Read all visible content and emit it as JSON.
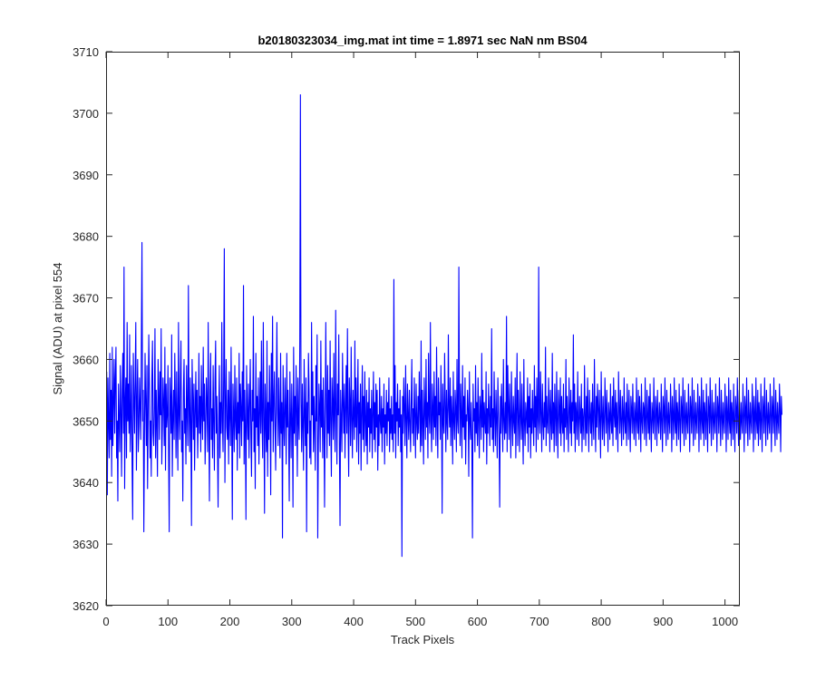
{
  "colors": {
    "line": "#0000ff",
    "axis": "#262626",
    "background": "#ffffff"
  },
  "chart_data": {
    "type": "line",
    "title": "b20180323034_img.mat int time = 1.8971 sec  NaN nm BS04",
    "xlabel": "Track Pixels",
    "ylabel": "Signal (ADU) at pixel 554",
    "xlim": [
      0,
      1024
    ],
    "ylim": [
      3620,
      3710
    ],
    "xticks": [
      0,
      100,
      200,
      300,
      400,
      500,
      600,
      700,
      800,
      900,
      1000
    ],
    "yticks": [
      3620,
      3630,
      3640,
      3650,
      3660,
      3670,
      3680,
      3690,
      3700,
      3710
    ],
    "grid": false,
    "series": [
      {
        "x_start": 1,
        "x_step": 1,
        "y": [
          3658,
          3638,
          3657,
          3650,
          3644,
          3661,
          3647,
          3655,
          3641,
          3662,
          3646,
          3653,
          3660,
          3648,
          3657,
          3662,
          3644,
          3650,
          3637,
          3656,
          3650,
          3645,
          3659,
          3652,
          3641,
          3655,
          3661,
          3648,
          3675,
          3639,
          3653,
          3657,
          3644,
          3666,
          3650,
          3656,
          3648,
          3664,
          3645,
          3651,
          3659,
          3643,
          3634,
          3661,
          3654,
          3648,
          3657,
          3666,
          3642,
          3653,
          3660,
          3645,
          3649,
          3657,
          3652,
          3647,
          3663,
          3679,
          3650,
          3655,
          3632,
          3648,
          3661,
          3653,
          3646,
          3659,
          3639,
          3651,
          3664,
          3656,
          3644,
          3650,
          3641,
          3657,
          3663,
          3648,
          3646,
          3652,
          3665,
          3644,
          3655,
          3650,
          3641,
          3660,
          3654,
          3647,
          3658,
          3651,
          3665,
          3643,
          3649,
          3657,
          3653,
          3646,
          3662,
          3642,
          3656,
          3649,
          3651,
          3659,
          3645,
          3632,
          3657,
          3653,
          3648,
          3664,
          3641,
          3650,
          3655,
          3647,
          3661,
          3653,
          3644,
          3658,
          3650,
          3642,
          3666,
          3651,
          3647,
          3657,
          3663,
          3645,
          3650,
          3637,
          3655,
          3660,
          3648,
          3652,
          3643,
          3659,
          3651,
          3646,
          3672,
          3652,
          3645,
          3657,
          3650,
          3633,
          3660,
          3654,
          3647,
          3656,
          3642,
          3651,
          3658,
          3649,
          3655,
          3644,
          3650,
          3661,
          3648,
          3654,
          3645,
          3659,
          3651,
          3647,
          3662,
          3650,
          3656,
          3643,
          3649,
          3657,
          3653,
          3645,
          3666,
          3650,
          3637,
          3655,
          3661,
          3647,
          3652,
          3644,
          3659,
          3650,
          3642,
          3657,
          3663,
          3648,
          3654,
          3646,
          3636,
          3651,
          3659,
          3644,
          3653,
          3648,
          3666,
          3650,
          3645,
          3657,
          3678,
          3640,
          3652,
          3660,
          3649,
          3647,
          3655,
          3643,
          3658,
          3651,
          3646,
          3662,
          3649,
          3634,
          3656,
          3651,
          3645,
          3659,
          3650,
          3647,
          3657,
          3642,
          3653,
          3648,
          3661,
          3644,
          3656,
          3652,
          3646,
          3658,
          3650,
          3672,
          3643,
          3655,
          3649,
          3634,
          3659,
          3651,
          3647,
          3656,
          3644,
          3653,
          3660,
          3648,
          3641,
          3655,
          3650,
          3667,
          3645,
          3652,
          3639,
          3661,
          3649,
          3654,
          3646,
          3657,
          3643,
          3651,
          3658,
          3648,
          3663,
          3650,
          3644,
          3666,
          3652,
          3635,
          3656,
          3650,
          3645,
          3663,
          3641,
          3653,
          3647,
          3659,
          3652,
          3638,
          3661,
          3650,
          3667,
          3645,
          3653,
          3658,
          3649,
          3642,
          3655,
          3666,
          3651,
          3646,
          3657,
          3650,
          3644,
          3661,
          3648,
          3653,
          3631,
          3659,
          3650,
          3646,
          3657,
          3652,
          3643,
          3661,
          3649,
          3655,
          3647,
          3637,
          3658,
          3651,
          3644,
          3656,
          3650,
          3636,
          3662,
          3648,
          3654,
          3646,
          3659,
          3652,
          3641,
          3657,
          3650,
          3647,
          3663,
          3703,
          3653,
          3645,
          3656,
          3649,
          3642,
          3660,
          3651,
          3646,
          3657,
          3632,
          3653,
          3648,
          3661,
          3655,
          3644,
          3650,
          3643,
          3666,
          3651,
          3658,
          3645,
          3654,
          3649,
          3642,
          3659,
          3650,
          3664,
          3631,
          3646,
          3656,
          3652,
          3645,
          3663,
          3649,
          3655,
          3644,
          3657,
          3650,
          3636,
          3651,
          3666,
          3652,
          3644,
          3659,
          3648,
          3655,
          3646,
          3663,
          3650,
          3641,
          3657,
          3653,
          3647,
          3661,
          3650,
          3645,
          3668,
          3652,
          3643,
          3656,
          3651,
          3664,
          3646,
          3633,
          3655,
          3650,
          3645,
          3661,
          3653,
          3648,
          3656,
          3644,
          3652,
          3659,
          3648,
          3665,
          3650,
          3641,
          3657,
          3653,
          3646,
          3662,
          3650,
          3644,
          3655,
          3651,
          3647,
          3663,
          3649,
          3657,
          3645,
          3652,
          3660,
          3643,
          3653,
          3648,
          3656,
          3642,
          3651,
          3659,
          3647,
          3654,
          3645,
          3658,
          3650,
          3646,
          3655,
          3643,
          3653,
          3649,
          3657,
          3645,
          3652,
          3648,
          3655,
          3644,
          3651,
          3658,
          3647,
          3653,
          3645,
          3656,
          3649,
          3655,
          3642,
          3651,
          3646,
          3657,
          3650,
          3648,
          3654,
          3645,
          3652,
          3649,
          3656,
          3643,
          3651,
          3648,
          3655,
          3646,
          3653,
          3650,
          3657,
          3645,
          3652,
          3648,
          3654,
          3647,
          3651,
          3645,
          3673,
          3648,
          3659,
          3644,
          3653,
          3650,
          3656,
          3646,
          3652,
          3649,
          3655,
          3645,
          3651,
          3628,
          3654,
          3648,
          3657,
          3652,
          3646,
          3659,
          3650,
          3644,
          3656,
          3651,
          3647,
          3655,
          3650,
          3645,
          3653,
          3660,
          3648,
          3652,
          3646,
          3657,
          3651,
          3644,
          3656,
          3650,
          3647,
          3654,
          3648,
          3658,
          3652,
          3645,
          3663,
          3646,
          3655,
          3650,
          3643,
          3657,
          3652,
          3647,
          3660,
          3649,
          3653,
          3644,
          3661,
          3651,
          3648,
          3666,
          3650,
          3645,
          3656,
          3652,
          3647,
          3658,
          3649,
          3654,
          3646,
          3662,
          3650,
          3644,
          3657,
          3651,
          3653,
          3647,
          3659,
          3652,
          3635,
          3656,
          3650,
          3648,
          3661,
          3653,
          3645,
          3655,
          3650,
          3647,
          3664,
          3652,
          3649,
          3657,
          3646,
          3654,
          3651,
          3643,
          3658,
          3650,
          3647,
          3655,
          3652,
          3645,
          3660,
          3650,
          3648,
          3675,
          3653,
          3646,
          3656,
          3651,
          3644,
          3659,
          3649,
          3654,
          3647,
          3657,
          3643,
          3651,
          3650,
          3655,
          3652,
          3641,
          3658,
          3650,
          3647,
          3653,
          3646,
          3631,
          3656,
          3650,
          3652,
          3645,
          3659,
          3648,
          3653,
          3646,
          3657,
          3650,
          3644,
          3654,
          3652,
          3647,
          3661,
          3649,
          3655,
          3645,
          3653,
          3650,
          3648,
          3658,
          3643,
          3652,
          3648,
          3656,
          3651,
          3646,
          3654,
          3649,
          3665,
          3647,
          3652,
          3645,
          3658,
          3651,
          3646,
          3655,
          3650,
          3644,
          3657,
          3652,
          3647,
          3636,
          3654,
          3648,
          3656,
          3651,
          3645,
          3660,
          3650,
          3647,
          3653,
          3648,
          3667,
          3645,
          3659,
          3652,
          3647,
          3656,
          3650,
          3644,
          3658,
          3651,
          3646,
          3654,
          3650,
          3648,
          3657,
          3644,
          3652,
          3661,
          3646,
          3655,
          3650,
          3645,
          3658,
          3651,
          3647,
          3656,
          3649,
          3643,
          3660,
          3650,
          3646,
          3653,
          3651,
          3648,
          3657,
          3645,
          3654,
          3649,
          3656,
          3644,
          3652,
          3648,
          3655,
          3650,
          3646,
          3659,
          3649,
          3654,
          3645,
          3657,
          3651,
          3647,
          3675,
          3650,
          3648,
          3658,
          3651,
          3645,
          3656,
          3650,
          3647,
          3653,
          3649,
          3662,
          3646,
          3654,
          3650,
          3648,
          3657,
          3652,
          3645,
          3655,
          3650,
          3647,
          3661,
          3648,
          3653,
          3645,
          3656,
          3651,
          3646,
          3658,
          3650,
          3644,
          3655,
          3652,
          3648,
          3657,
          3646,
          3654,
          3650,
          3648,
          3656,
          3645,
          3652,
          3649,
          3660,
          3647,
          3654,
          3650,
          3645,
          3657,
          3652,
          3648,
          3655,
          3646,
          3653,
          3650,
          3664,
          3648,
          3656,
          3645,
          3653,
          3651,
          3647,
          3658,
          3650,
          3646,
          3654,
          3651,
          3648,
          3656,
          3645,
          3652,
          3650,
          3647,
          3659,
          3651,
          3646,
          3654,
          3648,
          3657,
          3650,
          3645,
          3655,
          3651,
          3648,
          3653,
          3646,
          3656,
          3650,
          3647,
          3660,
          3651,
          3645,
          3654,
          3649,
          3656,
          3652,
          3647,
          3655,
          3650,
          3644,
          3658,
          3651,
          3647,
          3654,
          3650,
          3646,
          3657,
          3652,
          3648,
          3655,
          3650,
          3645,
          3653,
          3651,
          3647,
          3656,
          3650,
          3648,
          3654,
          3646,
          3657,
          3651,
          3649,
          3655,
          3647,
          3653,
          3650,
          3645,
          3658,
          3652,
          3648,
          3655,
          3650,
          3646,
          3654,
          3651,
          3647,
          3657,
          3650,
          3648,
          3653,
          3646,
          3656,
          3651,
          3647,
          3655,
          3650,
          3645,
          3654,
          3652,
          3648,
          3656,
          3650,
          3647,
          3653,
          3651,
          3646,
          3657,
          3650,
          3648,
          3655,
          3647,
          3654,
          3651,
          3645,
          3656,
          3650,
          3648,
          3653,
          3652,
          3647,
          3657,
          3650,
          3646,
          3655,
          3651,
          3648,
          3654,
          3647,
          3656,
          3650,
          3645,
          3653,
          3651,
          3648,
          3657,
          3650,
          3647,
          3654,
          3652,
          3646,
          3655,
          3650,
          3648,
          3653,
          3651,
          3647,
          3656,
          3650,
          3645,
          3654,
          3652,
          3648,
          3657,
          3650,
          3646,
          3655,
          3651,
          3647,
          3653,
          3650,
          3648,
          3656,
          3652,
          3645,
          3654,
          3651,
          3647,
          3657,
          3650,
          3648,
          3655,
          3646,
          3653,
          3651,
          3647,
          3656,
          3650,
          3645,
          3654,
          3652,
          3648,
          3657,
          3650,
          3646,
          3655,
          3651,
          3647,
          3653,
          3650,
          3648,
          3656,
          3651,
          3645,
          3654,
          3652,
          3648,
          3657,
          3650,
          3646,
          3655,
          3651,
          3647,
          3653,
          3650,
          3648,
          3656,
          3652,
          3645,
          3654,
          3651,
          3647,
          3657,
          3650,
          3648,
          3655,
          3646,
          3653,
          3651,
          3647,
          3656,
          3650,
          3645,
          3654,
          3652,
          3648,
          3657,
          3650,
          3646,
          3655,
          3651,
          3647,
          3653,
          3650,
          3648,
          3656,
          3651,
          3645,
          3654,
          3652,
          3648,
          3657,
          3650,
          3646,
          3655,
          3651,
          3647,
          3653,
          3650,
          3648,
          3656,
          3652,
          3645,
          3654,
          3651,
          3647,
          3657,
          3650,
          3648,
          3655,
          3646,
          3653,
          3651,
          3647,
          3656,
          3650,
          3645,
          3654,
          3652,
          3648,
          3657,
          3650,
          3646,
          3655,
          3651,
          3647,
          3653,
          3650,
          3648,
          3656,
          3651,
          3645,
          3654,
          3652,
          3648,
          3657,
          3650,
          3646,
          3655,
          3651,
          3647,
          3653,
          3650,
          3648,
          3656,
          3652,
          3645,
          3654,
          3651,
          3647,
          3657,
          3650,
          3648,
          3655,
          3646,
          3653,
          3651,
          3647,
          3656,
          3650,
          3645,
          3654,
          3652,
          3648,
          3657,
          3650,
          3646,
          3655,
          3651,
          3647,
          3653,
          3650,
          3648,
          3656,
          3651,
          3645,
          3654,
          3652,
          3648,
          3657,
          3650,
          3646,
          3655,
          3651,
          3647,
          3653,
          3650,
          3648,
          3656,
          3652,
          3645,
          3654,
          3651
        ]
      }
    ]
  }
}
